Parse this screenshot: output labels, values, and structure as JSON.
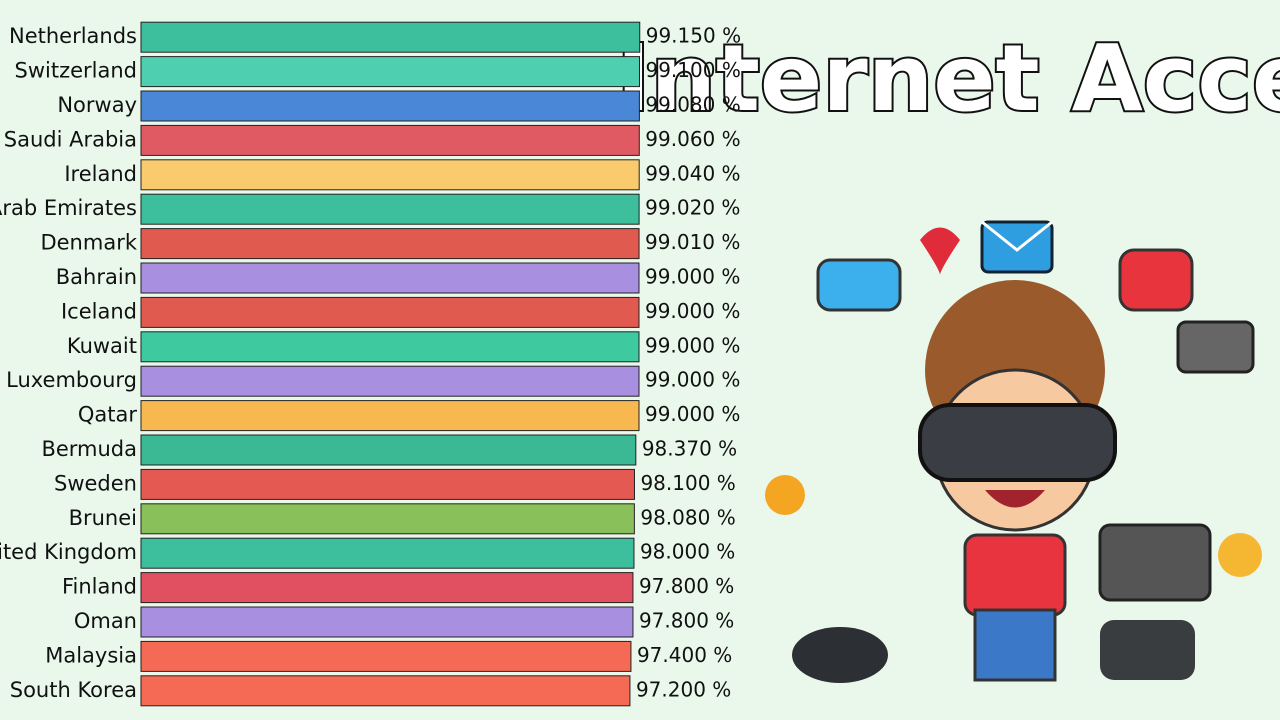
{
  "chart_data": {
    "type": "bar",
    "orientation": "horizontal",
    "title": "Internet Access",
    "categories": [
      "Netherlands",
      "Switzerland",
      "Norway",
      "Saudi Arabia",
      "Ireland",
      "United Arab Emirates",
      "Denmark",
      "Bahrain",
      "Iceland",
      "Kuwait",
      "Luxembourg",
      "Qatar",
      "Bermuda",
      "Sweden",
      "Brunei",
      "United Kingdom",
      "Finland",
      "Oman",
      "Malaysia",
      "South Korea"
    ],
    "values": [
      99.15,
      99.1,
      99.08,
      99.06,
      99.04,
      99.02,
      99.01,
      99,
      99,
      99,
      99,
      99,
      98.37,
      98.1,
      98.08,
      98,
      97.8,
      97.8,
      97.4,
      97.2
    ],
    "value_labels": [
      "99.150 %",
      "99.100 %",
      "99.080 %",
      "99.060 %",
      "99.040 %",
      "99.020 %",
      "99.010 %",
      "99.000 %",
      "99.000 %",
      "99.000 %",
      "99.000 %",
      "99.000 %",
      "98.370 %",
      "98.100 %",
      "98.080 %",
      "98.000 %",
      "97.800 %",
      "97.800 %",
      "97.400 %",
      "97.200 %"
    ],
    "colors": [
      "#3dbf9e",
      "#4ecfb0",
      "#4a87d6",
      "#e05a63",
      "#f9cb6c",
      "#3dbf9e",
      "#e05a4f",
      "#a98fe0",
      "#e05a4f",
      "#3ec99f",
      "#a98fe0",
      "#f7b84f",
      "#3bb894",
      "#e45a52",
      "#89c05a",
      "#3dbf9e",
      "#e05060",
      "#a98fe0",
      "#f46a55",
      "#f46a55"
    ],
    "xlim": [
      0,
      99.2
    ]
  }
}
